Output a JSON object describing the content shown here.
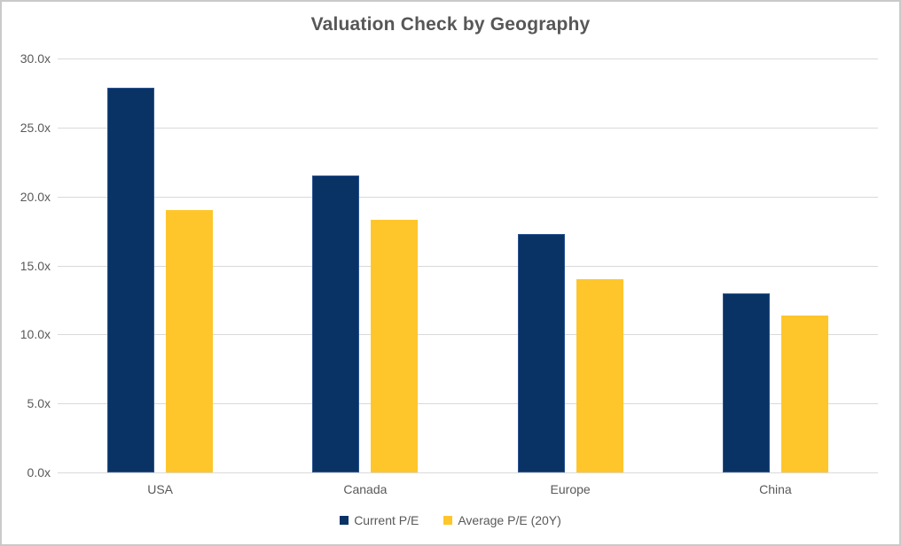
{
  "frame": {
    "border_color": "#c9c9c9",
    "background": "#ffffff"
  },
  "chart_data": {
    "type": "bar",
    "title": "Valuation Check by Geography",
    "title_color": "#575757",
    "categories": [
      "USA",
      "Canada",
      "Europe",
      "China"
    ],
    "series": [
      {
        "name": "Current P/E",
        "color": "#0a3365",
        "border_color": "#2a5492",
        "values": [
          27.9,
          21.5,
          17.3,
          13.0
        ]
      },
      {
        "name": "Average P/E (20Y)",
        "color": "#ffc62b",
        "border_color": "#ffc62b",
        "values": [
          19.0,
          18.3,
          14.0,
          11.4
        ]
      }
    ],
    "xlabel": "",
    "ylabel": "",
    "ylim": [
      0,
      30
    ],
    "ytick_values": [
      30,
      25,
      20,
      15,
      10,
      5,
      0
    ],
    "ytick_labels": [
      "30.0x",
      "25.0x",
      "20.0x",
      "15.0x",
      "10.0x",
      "5.0x",
      "0.0x"
    ],
    "grid": "horizontal",
    "gridline_color": "#d9d9d9",
    "axis_text_color": "#595959",
    "legend_position": "bottom",
    "legend_marker": "square-icon"
  }
}
